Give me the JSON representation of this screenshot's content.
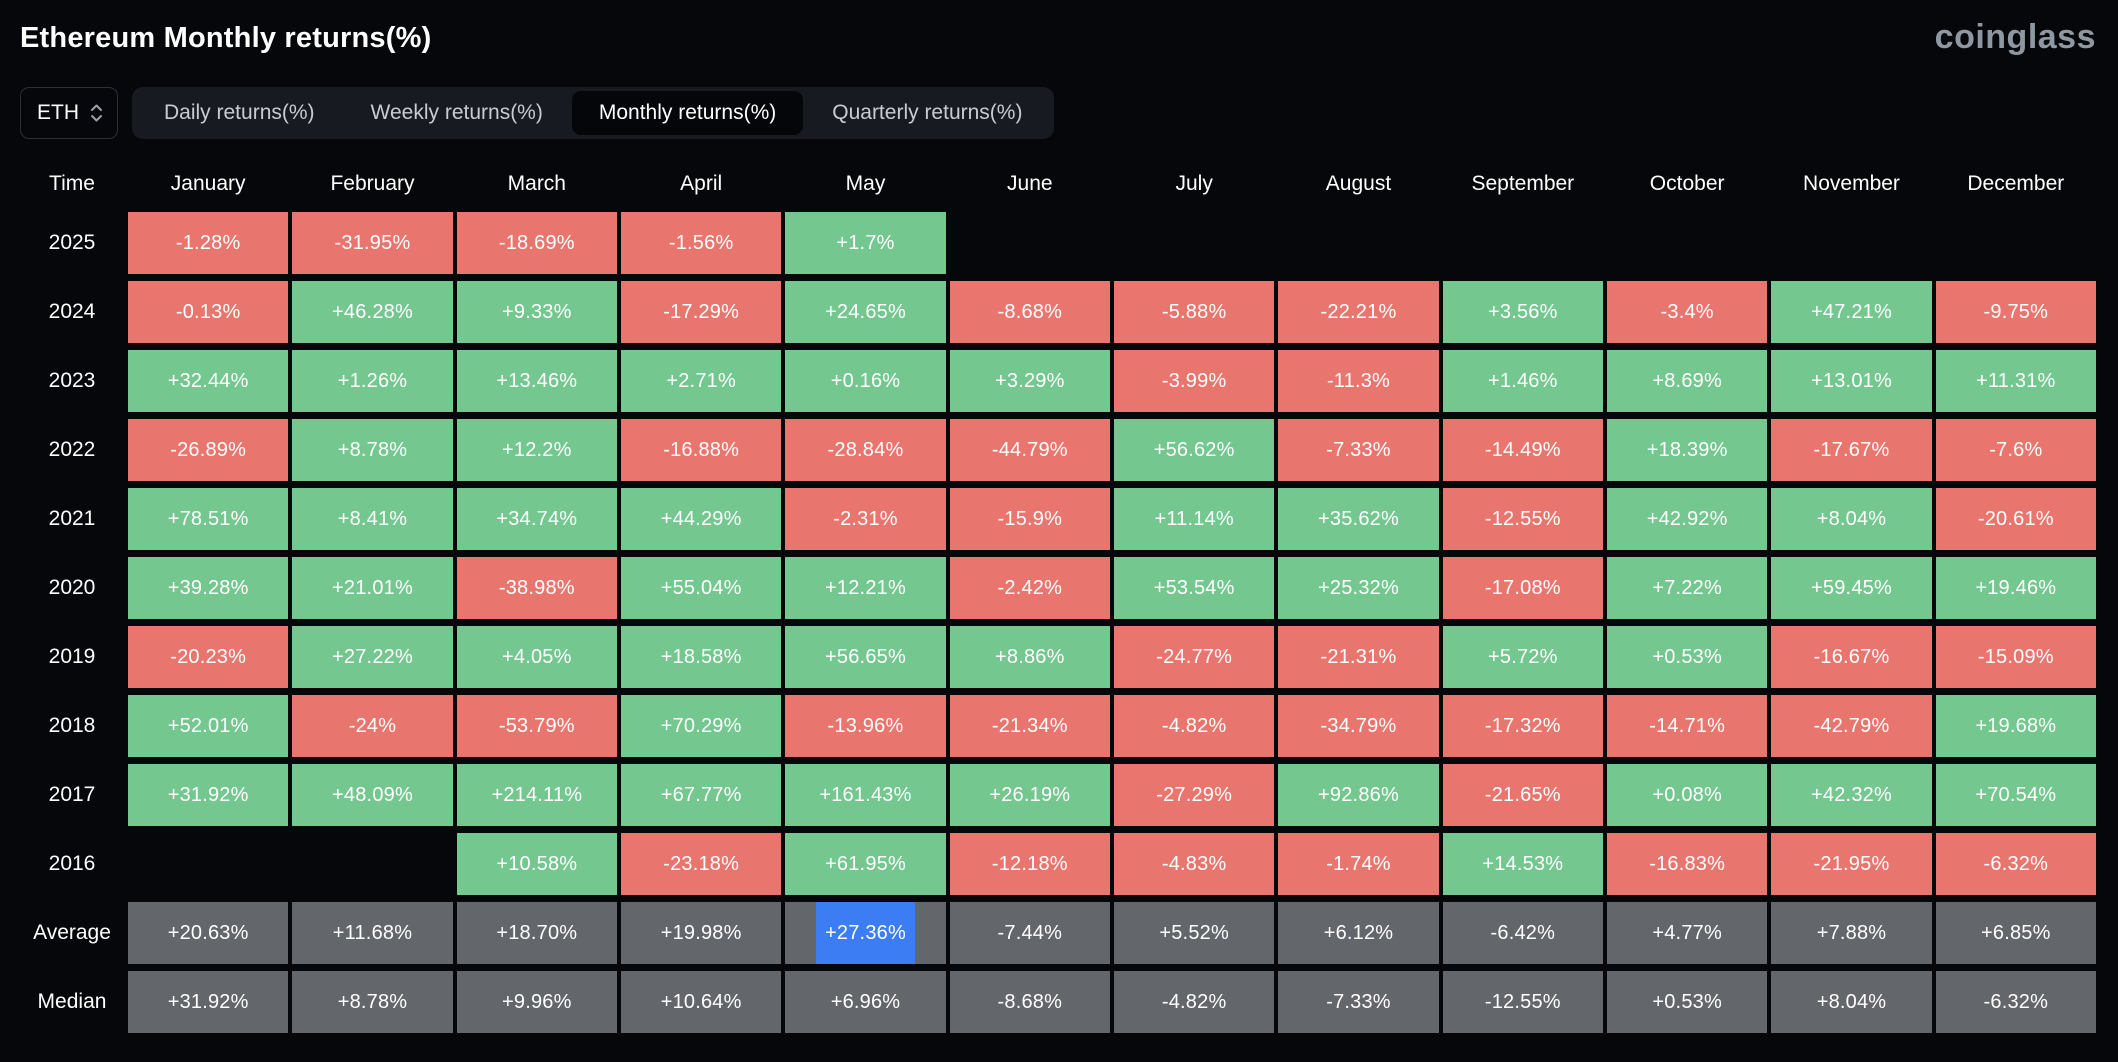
{
  "header": {
    "title": "Ethereum Monthly returns(%)",
    "logo": "coinglass"
  },
  "controls": {
    "symbol": "ETH",
    "tabs": [
      {
        "label": "Daily returns(%)",
        "active": false
      },
      {
        "label": "Weekly returns(%)",
        "active": false
      },
      {
        "label": "Monthly returns(%)",
        "active": true
      },
      {
        "label": "Quarterly returns(%)",
        "active": false
      }
    ]
  },
  "palette": {
    "positive": "#73c78f",
    "negative": "#e9766e",
    "neutral": "#63666a",
    "highlight": "#3c7df4",
    "background": "#05070b"
  },
  "chart_data": {
    "type": "heatmap",
    "title": "Ethereum Monthly returns(%)",
    "columns": [
      "Time",
      "January",
      "February",
      "March",
      "April",
      "May",
      "June",
      "July",
      "August",
      "September",
      "October",
      "November",
      "December"
    ],
    "rows": [
      {
        "label": "2025",
        "values": [
          "-1.28%",
          "-31.95%",
          "-18.69%",
          "-1.56%",
          "+1.7%",
          null,
          null,
          null,
          null,
          null,
          null,
          null
        ],
        "colors": [
          "negative",
          "negative",
          "negative",
          "negative",
          "positive",
          null,
          null,
          null,
          null,
          null,
          null,
          null
        ]
      },
      {
        "label": "2024",
        "values": [
          "-0.13%",
          "+46.28%",
          "+9.33%",
          "-17.29%",
          "+24.65%",
          "-8.68%",
          "-5.88%",
          "-22.21%",
          "+3.56%",
          "-3.4%",
          "+47.21%",
          "-9.75%"
        ],
        "colors": [
          "negative",
          "positive",
          "positive",
          "negative",
          "positive",
          "negative",
          "negative",
          "negative",
          "positive",
          "negative",
          "positive",
          "negative"
        ]
      },
      {
        "label": "2023",
        "values": [
          "+32.44%",
          "+1.26%",
          "+13.46%",
          "+2.71%",
          "+0.16%",
          "+3.29%",
          "-3.99%",
          "-11.3%",
          "+1.46%",
          "+8.69%",
          "+13.01%",
          "+11.31%"
        ],
        "colors": [
          "positive",
          "positive",
          "positive",
          "positive",
          "positive",
          "positive",
          "negative",
          "negative",
          "positive",
          "positive",
          "positive",
          "positive"
        ]
      },
      {
        "label": "2022",
        "values": [
          "-26.89%",
          "+8.78%",
          "+12.2%",
          "-16.88%",
          "-28.84%",
          "-44.79%",
          "+56.62%",
          "-7.33%",
          "-14.49%",
          "+18.39%",
          "-17.67%",
          "-7.6%"
        ],
        "colors": [
          "negative",
          "positive",
          "positive",
          "negative",
          "negative",
          "negative",
          "positive",
          "negative",
          "negative",
          "positive",
          "negative",
          "negative"
        ]
      },
      {
        "label": "2021",
        "values": [
          "+78.51%",
          "+8.41%",
          "+34.74%",
          "+44.29%",
          "-2.31%",
          "-15.9%",
          "+11.14%",
          "+35.62%",
          "-12.55%",
          "+42.92%",
          "+8.04%",
          "-20.61%"
        ],
        "colors": [
          "positive",
          "positive",
          "positive",
          "positive",
          "negative",
          "negative",
          "positive",
          "positive",
          "negative",
          "positive",
          "positive",
          "negative"
        ]
      },
      {
        "label": "2020",
        "values": [
          "+39.28%",
          "+21.01%",
          "-38.98%",
          "+55.04%",
          "+12.21%",
          "-2.42%",
          "+53.54%",
          "+25.32%",
          "-17.08%",
          "+7.22%",
          "+59.45%",
          "+19.46%"
        ],
        "colors": [
          "positive",
          "positive",
          "negative",
          "positive",
          "positive",
          "negative",
          "positive",
          "positive",
          "negative",
          "positive",
          "positive",
          "positive"
        ]
      },
      {
        "label": "2019",
        "values": [
          "-20.23%",
          "+27.22%",
          "+4.05%",
          "+18.58%",
          "+56.65%",
          "+8.86%",
          "-24.77%",
          "-21.31%",
          "+5.72%",
          "+0.53%",
          "-16.67%",
          "-15.09%"
        ],
        "colors": [
          "negative",
          "positive",
          "positive",
          "positive",
          "positive",
          "positive",
          "negative",
          "negative",
          "positive",
          "positive",
          "negative",
          "negative"
        ]
      },
      {
        "label": "2018",
        "values": [
          "+52.01%",
          "-24%",
          "-53.79%",
          "+70.29%",
          "-13.96%",
          "-21.34%",
          "-4.82%",
          "-34.79%",
          "-17.32%",
          "-14.71%",
          "-42.79%",
          "+19.68%"
        ],
        "colors": [
          "positive",
          "negative",
          "negative",
          "positive",
          "negative",
          "negative",
          "negative",
          "negative",
          "negative",
          "negative",
          "negative",
          "positive"
        ]
      },
      {
        "label": "2017",
        "values": [
          "+31.92%",
          "+48.09%",
          "+214.11%",
          "+67.77%",
          "+161.43%",
          "+26.19%",
          "-27.29%",
          "+92.86%",
          "-21.65%",
          "+0.08%",
          "+42.32%",
          "+70.54%"
        ],
        "colors": [
          "positive",
          "positive",
          "positive",
          "positive",
          "positive",
          "positive",
          "negative",
          "positive",
          "negative",
          "positive",
          "positive",
          "positive"
        ]
      },
      {
        "label": "2016",
        "values": [
          null,
          null,
          "+10.58%",
          "-23.18%",
          "+61.95%",
          "-12.18%",
          "-4.83%",
          "-1.74%",
          "+14.53%",
          "-16.83%",
          "-21.95%",
          "-6.32%"
        ],
        "colors": [
          null,
          null,
          "positive",
          "negative",
          "positive",
          "negative",
          "negative",
          "negative",
          "positive",
          "negative",
          "negative",
          "negative"
        ]
      },
      {
        "label": "Average",
        "values": [
          "+20.63%",
          "+11.68%",
          "+18.70%",
          "+19.98%",
          "+27.36%",
          "-7.44%",
          "+5.52%",
          "+6.12%",
          "-6.42%",
          "+4.77%",
          "+7.88%",
          "+6.85%"
        ],
        "colors": [
          "neutral",
          "neutral",
          "neutral",
          "neutral",
          "neutral",
          "neutral",
          "neutral",
          "neutral",
          "neutral",
          "neutral",
          "neutral",
          "neutral"
        ],
        "highlight_index": 4
      },
      {
        "label": "Median",
        "values": [
          "+31.92%",
          "+8.78%",
          "+9.96%",
          "+10.64%",
          "+6.96%",
          "-8.68%",
          "-4.82%",
          "-7.33%",
          "-12.55%",
          "+0.53%",
          "+8.04%",
          "-6.32%"
        ],
        "colors": [
          "neutral",
          "neutral",
          "neutral",
          "neutral",
          "neutral",
          "neutral",
          "neutral",
          "neutral",
          "neutral",
          "neutral",
          "neutral",
          "neutral"
        ]
      }
    ]
  }
}
